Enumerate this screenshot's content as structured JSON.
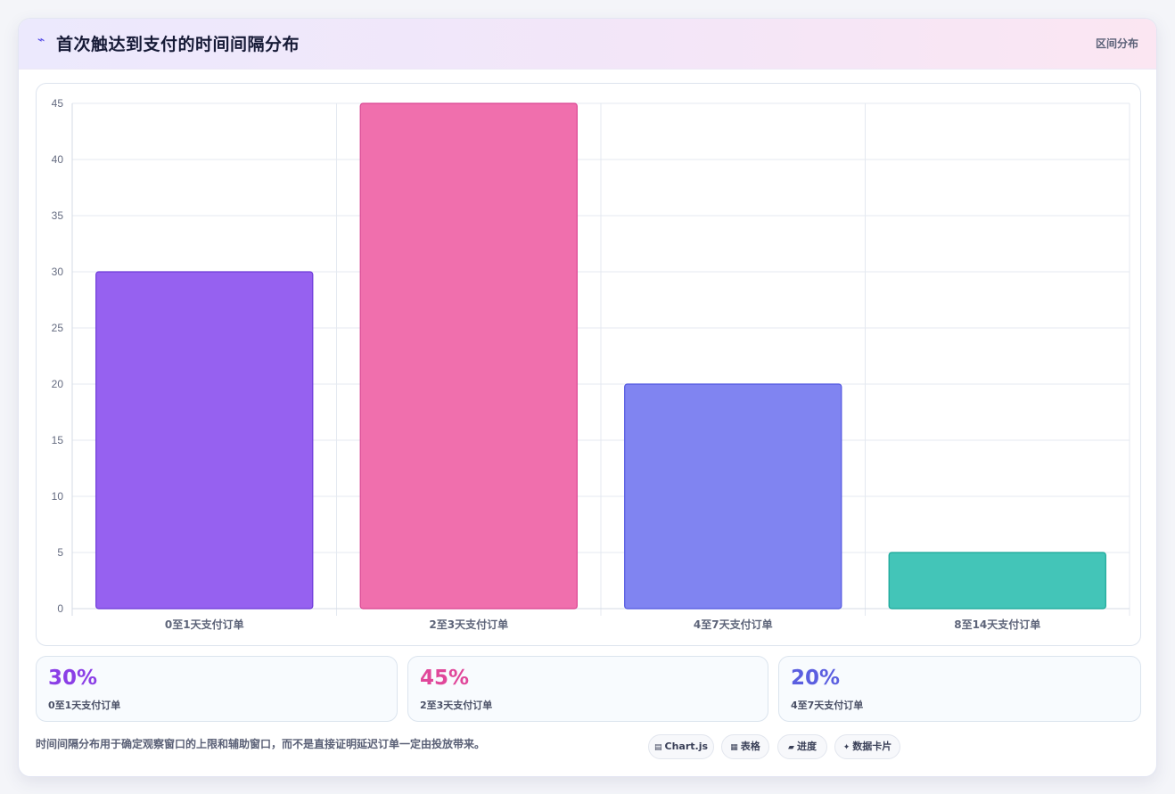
{
  "header": {
    "icon": "trend-zigzag-icon",
    "title": "首次触达到支付的时间间隔分布",
    "tag": "区间分布"
  },
  "chart_data": {
    "type": "bar",
    "categories": [
      "0至1天支付订单",
      "2至3天支付订单",
      "4至7天支付订单",
      "8至14天支付订单"
    ],
    "values": [
      30,
      45,
      20,
      5
    ],
    "ylim": [
      0,
      45
    ],
    "yticks": [
      0,
      5,
      10,
      15,
      20,
      25,
      30,
      35,
      40,
      45
    ],
    "grid": true,
    "legend": "none",
    "colors": [
      "#8b5cf6",
      "#ec4899",
      "#6366f1",
      "#14b8a6"
    ],
    "bar_fill": [
      "#9661f0",
      "#f06fad",
      "#8084f1",
      "#43c5b8"
    ],
    "bar_border": [
      "#6d3bd8",
      "#d94592",
      "#5257e0",
      "#18a697"
    ]
  },
  "stats": [
    {
      "value": "30%",
      "label": "0至1天支付订单",
      "color": "#8b3fe6"
    },
    {
      "value": "45%",
      "label": "2至3天支付订单",
      "color": "#e0479a"
    },
    {
      "value": "20%",
      "label": "4至7天支付订单",
      "color": "#5b5fe0"
    }
  ],
  "footnote": "时间间隔分布用于确定观察窗口的上限和辅助窗口，而不是直接证明延迟订单一定由投放带来。",
  "chips": [
    {
      "icon": "chart-icon",
      "label": "Chart.js"
    },
    {
      "icon": "table-icon",
      "label": "表格"
    },
    {
      "icon": "progress-icon",
      "label": "进度"
    },
    {
      "icon": "sparkle-icon",
      "label": "数据卡片"
    }
  ]
}
